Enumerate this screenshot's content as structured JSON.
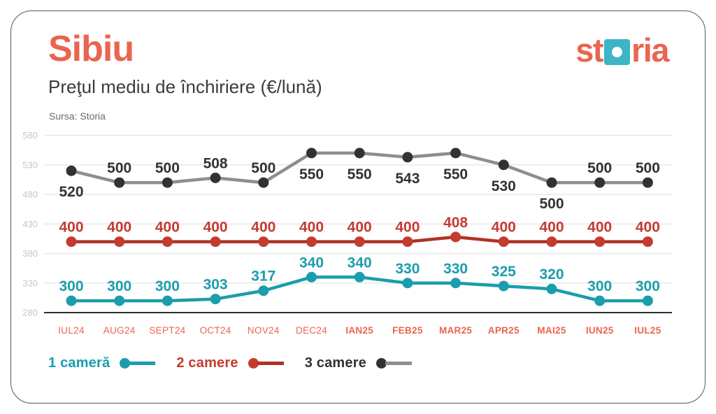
{
  "logo": {
    "name": "storia",
    "left": "st",
    "right": "ria"
  },
  "colors": {
    "coral": "#EB6450",
    "logo-teal": "#3DB5C5",
    "teal": "#1B9DAC",
    "red": "#C43B30",
    "red-line": "#AF3226",
    "dark": "#323232",
    "gray-line": "#8E8E8E",
    "grid": "#E4E4E4",
    "axis": "#2E2E2E",
    "tick": "#C6C6C6"
  },
  "chart_data": {
    "type": "line",
    "title": "Sibiu",
    "subtitle": "Preţul mediu de închiriere (€/lună)",
    "source": "Sursa: Storia",
    "ylim": [
      280,
      580
    ],
    "yticks": [
      580,
      530,
      480,
      430,
      380,
      330,
      280
    ],
    "grid": "horizontal-light",
    "legend_position": "bottom-left",
    "categories": [
      {
        "label": "IUL24",
        "bold": false
      },
      {
        "label": "AUG24",
        "bold": false
      },
      {
        "label": "SEPT24",
        "bold": false
      },
      {
        "label": "OCT24",
        "bold": false
      },
      {
        "label": "NOV24",
        "bold": false
      },
      {
        "label": "DEC24",
        "bold": false
      },
      {
        "label": "IAN25",
        "bold": true
      },
      {
        "label": "FEB25",
        "bold": true
      },
      {
        "label": "MAR25",
        "bold": true
      },
      {
        "label": "APR25",
        "bold": true
      },
      {
        "label": "MAI25",
        "bold": true
      },
      {
        "label": "IUN25",
        "bold": true
      },
      {
        "label": "IUL25",
        "bold": true
      }
    ],
    "series": [
      {
        "id": "1-camera",
        "name": "1 cameră",
        "dot_color": "#1B9DAC",
        "line_color": "#1B9DAC",
        "label_color": "#1B9DAC",
        "values": [
          300,
          300,
          300,
          303,
          317,
          340,
          340,
          330,
          330,
          325,
          320,
          300,
          300
        ],
        "label_positions": [
          "above",
          "above",
          "above",
          "above",
          "above",
          "above",
          "above",
          "above",
          "above",
          "above",
          "above",
          "above",
          "above"
        ]
      },
      {
        "id": "2-camere",
        "name": "2 camere",
        "dot_color": "#C43B30",
        "line_color": "#AF3226",
        "label_color": "#C43B30",
        "values": [
          400,
          400,
          400,
          400,
          400,
          400,
          400,
          400,
          408,
          400,
          400,
          400,
          400
        ],
        "label_positions": [
          "above",
          "above",
          "above",
          "above",
          "above",
          "above",
          "above",
          "above",
          "above",
          "above",
          "above",
          "above",
          "above"
        ]
      },
      {
        "id": "3-camere",
        "name": "3 camere",
        "dot_color": "#323232",
        "line_color": "#8E8E8E",
        "label_color": "#323232",
        "values": [
          520,
          500,
          500,
          508,
          500,
          550,
          550,
          543,
          550,
          530,
          500,
          500,
          500
        ],
        "label_positions": [
          "below",
          "above",
          "above",
          "above",
          "above",
          "below",
          "below",
          "below",
          "below",
          "below",
          "below",
          "above",
          "above"
        ]
      }
    ]
  }
}
